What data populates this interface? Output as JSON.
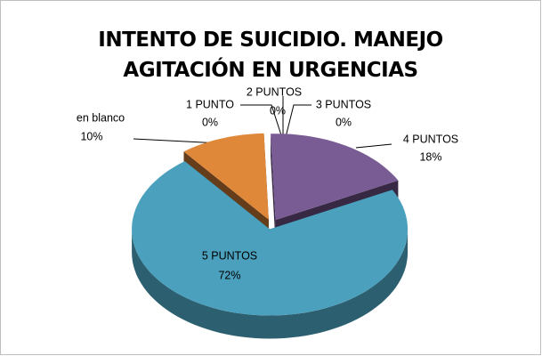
{
  "chart_data": {
    "type": "pie3d",
    "title": "INTENTO DE SUICIDIO. MANEJO AGITACIÓN EN URGENCIAS",
    "categories": [
      "en blanco",
      "1 PUNTO",
      "2 PUNTOS",
      "3 PUNTOS",
      "4 PUNTOS",
      "5 PUNTOS"
    ],
    "values": [
      10,
      0,
      0,
      0,
      18,
      72
    ],
    "value_labels": [
      "10%",
      "0%",
      "0%",
      "0%",
      "18%",
      "72%"
    ],
    "colors": [
      "#e0883a",
      "#c0504d",
      "#9bbb59",
      "#8064a2",
      "#7a5c95",
      "#4aa0bd"
    ]
  }
}
